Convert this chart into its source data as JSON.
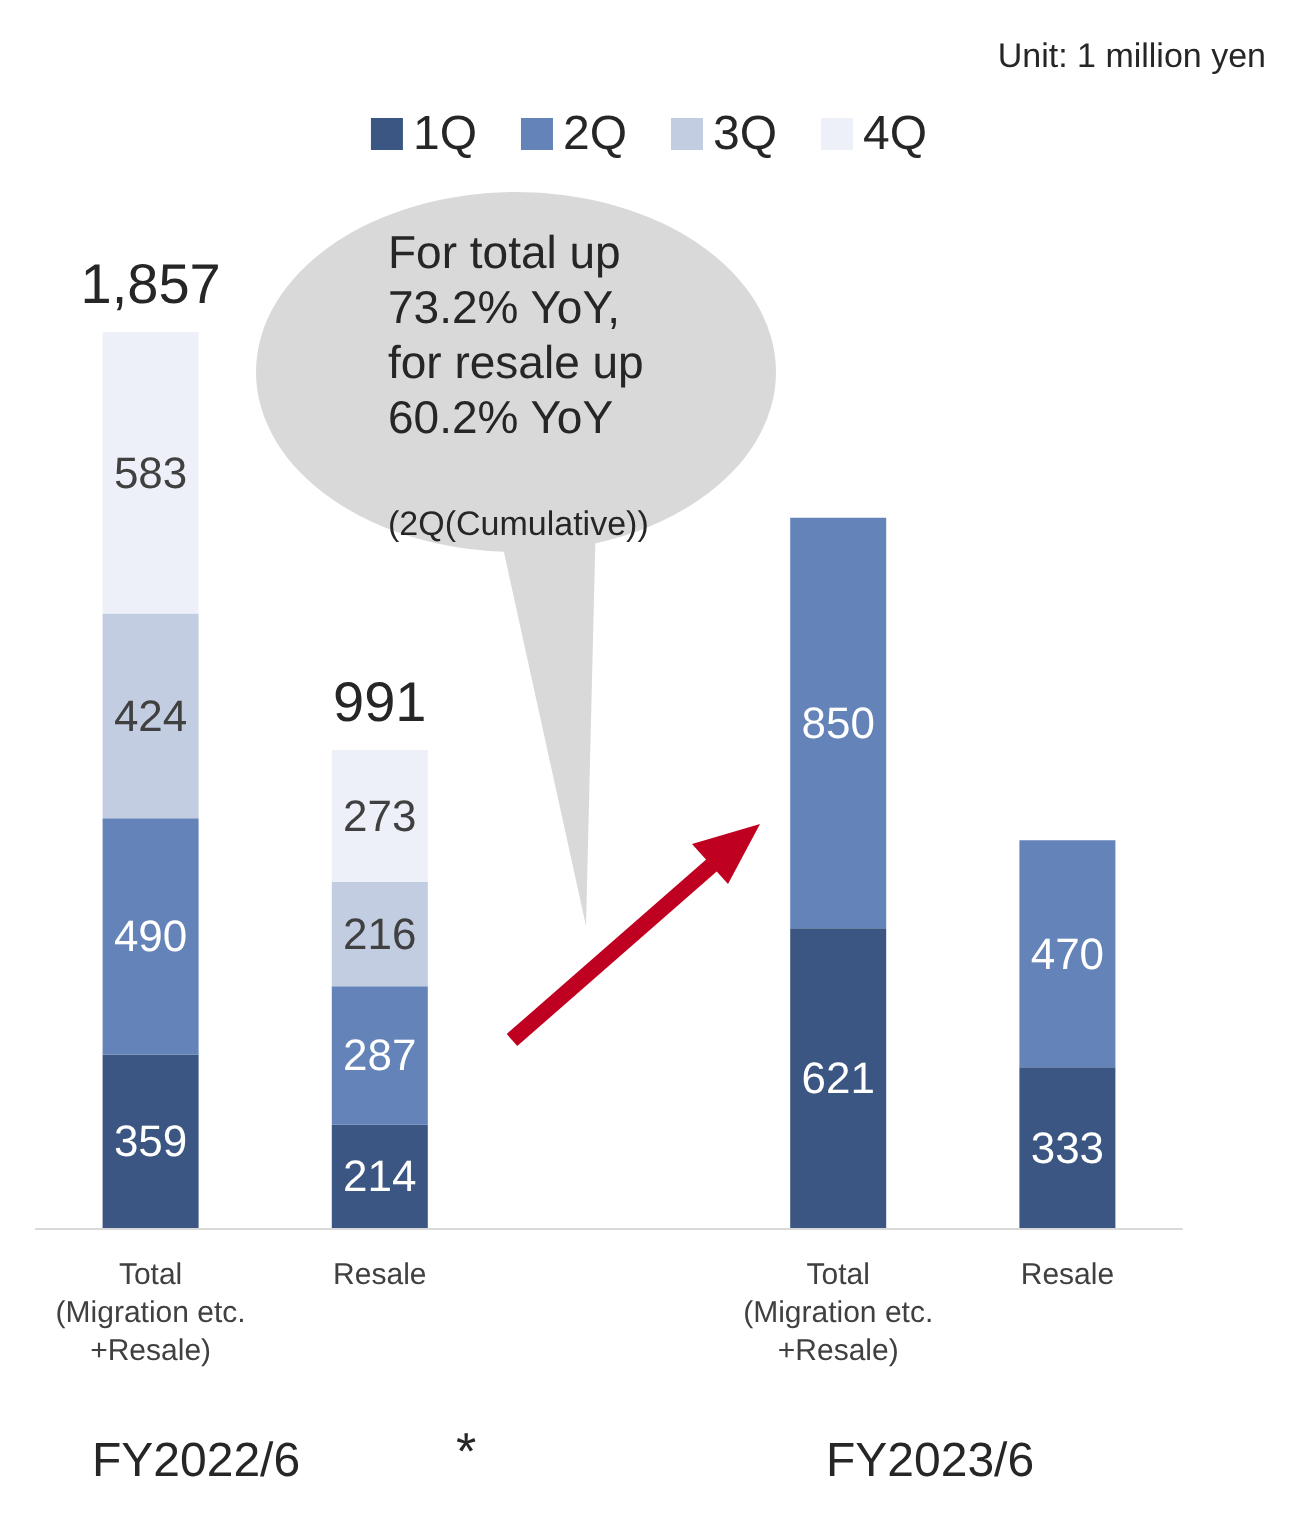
{
  "chart_data": {
    "type": "bar",
    "stacked": true,
    "categories": [
      "Total\n(Migration etc.\n+Resale)",
      "Resale",
      null,
      "Total\n(Migration etc.\n+Resale)",
      "Resale"
    ],
    "series": [
      {
        "name": "1Q",
        "color": "#3b5682",
        "values": [
          359,
          214,
          null,
          621,
          333
        ]
      },
      {
        "name": "2Q",
        "color": "#6383b9",
        "values": [
          490,
          287,
          null,
          850,
          470
        ]
      },
      {
        "name": "3Q",
        "color": "#c3cde1",
        "values": [
          424,
          216,
          null,
          null,
          null
        ]
      },
      {
        "name": "4Q",
        "color": "#edf0f8",
        "values": [
          583,
          273,
          null,
          null,
          null
        ]
      }
    ],
    "data_labels": true,
    "totals": [
      "1,857",
      "991",
      null,
      null,
      null
    ],
    "legend": "top",
    "annotations": [
      "Unit: 1 million yen",
      "For total up\n73.2% YoY,\nfor resale up\n60.2% YoY",
      "(2Q(Cumulative))",
      "FY2022/6",
      "*",
      "FY2023/6"
    ]
  }
}
